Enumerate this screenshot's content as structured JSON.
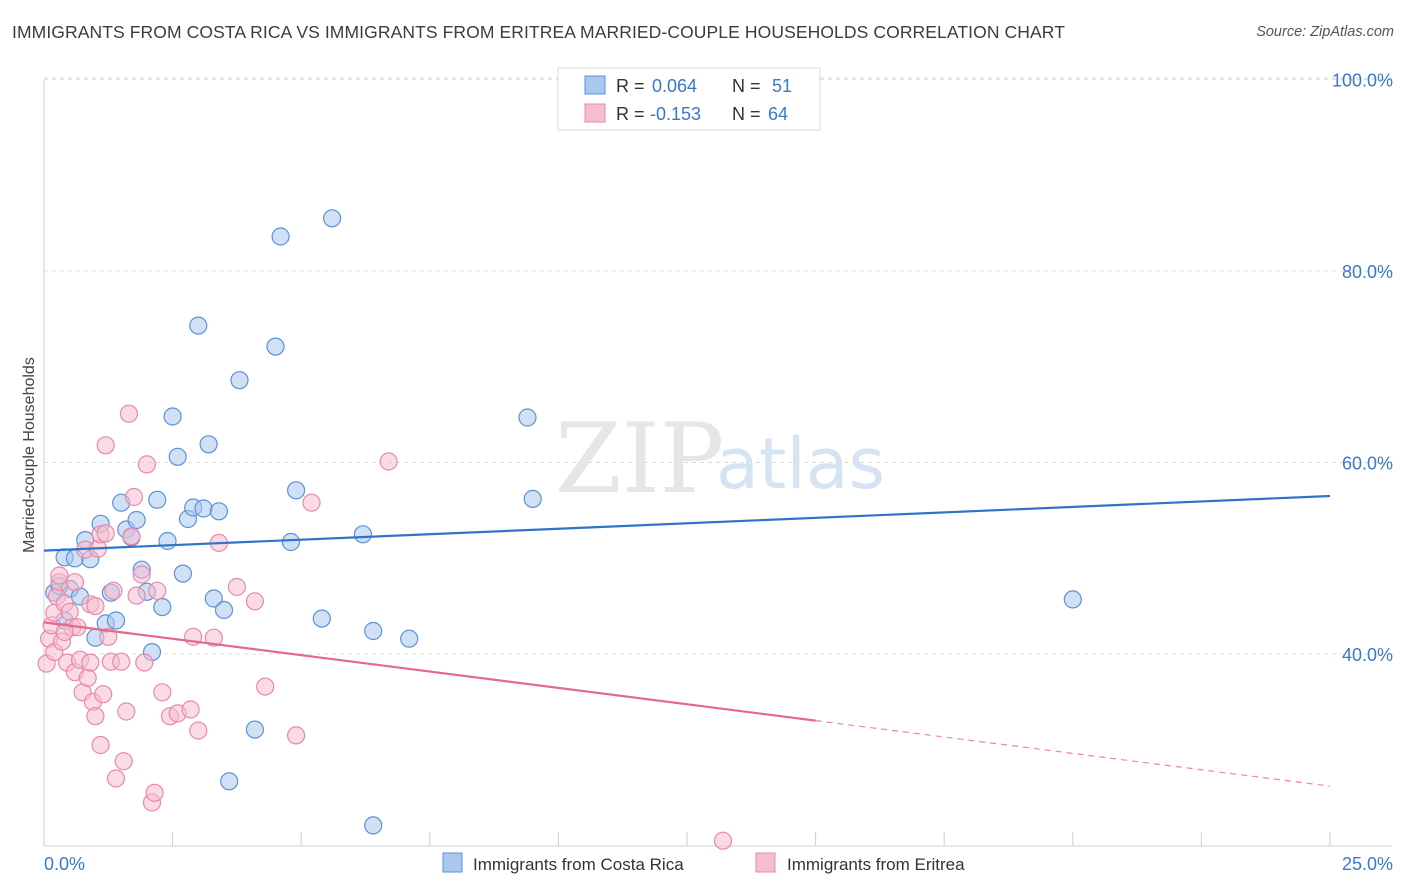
{
  "title": "IMMIGRANTS FROM COSTA RICA VS IMMIGRANTS FROM ERITREA MARRIED-COUPLE HOUSEHOLDS CORRELATION CHART",
  "source": "Source: ZipAtlas.com",
  "watermark": {
    "zip": "ZIP",
    "atlas": "atlas"
  },
  "colors": {
    "blue_fill": "#a9c8ef",
    "blue_stroke": "#5b91d6",
    "blue_line": "#2f74c8",
    "pink_fill": "#f6bdd0",
    "pink_stroke": "#e889aa",
    "pink_line": "#e46891",
    "axis_text": "#3a78c9",
    "grid": "#dcdcdc"
  },
  "legend": {
    "rows": [
      {
        "r_label": "R = ",
        "r_value": "0.064",
        "n_label": "N = ",
        "n_value": "51",
        "series": "blue"
      },
      {
        "r_label": "R = ",
        "r_value": "-0.153",
        "n_label": "N = ",
        "n_value": "64",
        "series": "pink"
      }
    ]
  },
  "chart_data": {
    "type": "scatter",
    "title": "IMMIGRANTS FROM COSTA RICA VS IMMIGRANTS FROM ERITREA MARRIED-COUPLE HOUSEHOLDS CORRELATION CHART",
    "xlabel": "",
    "ylabel": "Married-couple Households",
    "xlim": [
      0,
      25
    ],
    "ylim": [
      20,
      100
    ],
    "x_tick_labels": [
      {
        "value": 0,
        "label": "0.0%"
      },
      {
        "value": 25,
        "label": "25.0%"
      }
    ],
    "y_tick_labels": [
      {
        "value": 40,
        "label": "40.0%"
      },
      {
        "value": 60,
        "label": "60.0%"
      },
      {
        "value": 80,
        "label": "80.0%"
      },
      {
        "value": 100,
        "label": "100.0%"
      }
    ],
    "series": [
      {
        "name": "Immigrants from Costa Rica",
        "color": "blue",
        "trend": {
          "x0": 0,
          "y0": 50.8,
          "x1": 25,
          "y1": 56.5,
          "dashed_from": null
        },
        "points": [
          [
            0.2,
            46.4
          ],
          [
            0.3,
            47.1
          ],
          [
            0.4,
            43.5
          ],
          [
            0.4,
            50.1
          ],
          [
            0.5,
            46.8
          ],
          [
            0.6,
            50.0
          ],
          [
            0.7,
            46.0
          ],
          [
            0.8,
            51.9
          ],
          [
            0.9,
            49.9
          ],
          [
            1.0,
            41.7
          ],
          [
            1.1,
            53.6
          ],
          [
            1.2,
            43.2
          ],
          [
            1.3,
            46.4
          ],
          [
            1.4,
            43.5
          ],
          [
            1.5,
            55.8
          ],
          [
            1.6,
            53.0
          ],
          [
            1.7,
            52.2
          ],
          [
            1.8,
            54.0
          ],
          [
            1.9,
            48.8
          ],
          [
            2.0,
            46.5
          ],
          [
            2.1,
            40.2
          ],
          [
            2.2,
            56.1
          ],
          [
            2.3,
            44.9
          ],
          [
            2.4,
            51.8
          ],
          [
            2.5,
            64.8
          ],
          [
            2.6,
            60.6
          ],
          [
            2.7,
            48.4
          ],
          [
            2.8,
            54.1
          ],
          [
            2.9,
            55.3
          ],
          [
            3.0,
            74.3
          ],
          [
            3.1,
            55.2
          ],
          [
            3.2,
            61.9
          ],
          [
            3.3,
            45.8
          ],
          [
            3.4,
            54.9
          ],
          [
            3.5,
            44.6
          ],
          [
            3.6,
            26.7
          ],
          [
            3.8,
            68.6
          ],
          [
            4.1,
            32.1
          ],
          [
            4.6,
            83.6
          ],
          [
            4.5,
            72.1
          ],
          [
            4.8,
            51.7
          ],
          [
            4.9,
            57.1
          ],
          [
            5.4,
            43.7
          ],
          [
            5.6,
            85.5
          ],
          [
            6.2,
            52.5
          ],
          [
            6.4,
            42.4
          ],
          [
            6.4,
            22.1
          ],
          [
            7.1,
            41.6
          ],
          [
            9.4,
            64.7
          ],
          [
            9.5,
            56.2
          ],
          [
            20.0,
            45.7
          ]
        ]
      },
      {
        "name": "Immigrants from Eritrea",
        "color": "pink",
        "trend": {
          "x0": 0,
          "y0": 43.3,
          "x1": 25,
          "y1": 26.2,
          "dashed_from": 15.0
        },
        "points": [
          [
            0.05,
            39.0
          ],
          [
            0.1,
            41.6
          ],
          [
            0.15,
            43.0
          ],
          [
            0.2,
            44.3
          ],
          [
            0.2,
            40.2
          ],
          [
            0.25,
            46.0
          ],
          [
            0.3,
            47.5
          ],
          [
            0.3,
            48.2
          ],
          [
            0.35,
            41.3
          ],
          [
            0.4,
            45.3
          ],
          [
            0.45,
            39.1
          ],
          [
            0.5,
            44.4
          ],
          [
            0.55,
            42.8
          ],
          [
            0.6,
            47.5
          ],
          [
            0.6,
            38.1
          ],
          [
            0.65,
            42.8
          ],
          [
            0.7,
            39.4
          ],
          [
            0.75,
            36.0
          ],
          [
            0.8,
            50.9
          ],
          [
            0.85,
            37.5
          ],
          [
            0.9,
            45.2
          ],
          [
            0.9,
            39.1
          ],
          [
            0.95,
            35.0
          ],
          [
            1.0,
            33.5
          ],
          [
            1.05,
            51.0
          ],
          [
            1.1,
            52.5
          ],
          [
            1.1,
            30.5
          ],
          [
            1.15,
            35.8
          ],
          [
            1.2,
            52.6
          ],
          [
            1.2,
            61.8
          ],
          [
            1.25,
            41.8
          ],
          [
            1.3,
            39.2
          ],
          [
            1.35,
            46.6
          ],
          [
            1.4,
            27.0
          ],
          [
            1.5,
            39.2
          ],
          [
            1.55,
            28.8
          ],
          [
            1.6,
            34.0
          ],
          [
            1.65,
            65.1
          ],
          [
            1.7,
            52.3
          ],
          [
            1.75,
            56.4
          ],
          [
            1.8,
            46.1
          ],
          [
            1.9,
            48.3
          ],
          [
            1.95,
            39.1
          ],
          [
            2.0,
            59.8
          ],
          [
            2.1,
            24.5
          ],
          [
            2.15,
            25.5
          ],
          [
            2.2,
            46.6
          ],
          [
            2.3,
            36.0
          ],
          [
            2.45,
            33.5
          ],
          [
            2.6,
            33.8
          ],
          [
            2.85,
            34.2
          ],
          [
            2.9,
            41.8
          ],
          [
            3.0,
            32.0
          ],
          [
            3.3,
            41.7
          ],
          [
            3.4,
            51.6
          ],
          [
            3.75,
            47.0
          ],
          [
            4.1,
            45.5
          ],
          [
            4.3,
            36.6
          ],
          [
            4.9,
            31.5
          ],
          [
            5.2,
            55.8
          ],
          [
            6.7,
            60.1
          ],
          [
            13.2,
            20.5
          ],
          [
            1.0,
            45.0
          ],
          [
            0.4,
            42.3
          ]
        ]
      }
    ]
  }
}
